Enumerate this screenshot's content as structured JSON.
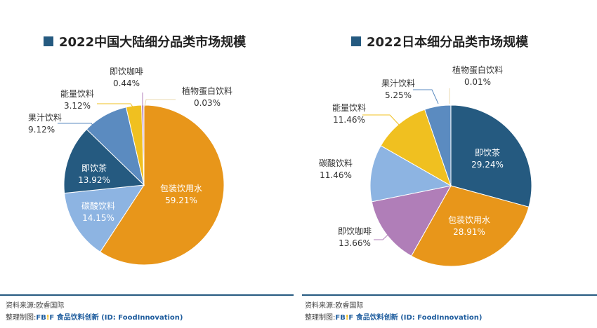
{
  "chart_data": [
    {
      "type": "pie",
      "title": "2022中国大陆细分品类市场规模",
      "slices": [
        {
          "label": "包装饮用水",
          "value": 59.21,
          "color": "#E8961A"
        },
        {
          "label": "碳酸饮料",
          "value": 14.15,
          "color": "#8DB4E2"
        },
        {
          "label": "即饮茶",
          "value": 13.92,
          "color": "#255A80"
        },
        {
          "label": "果汁饮料",
          "value": 9.12,
          "color": "#5B8BC0"
        },
        {
          "label": "能量饮料",
          "value": 3.12,
          "color": "#F0C020"
        },
        {
          "label": "即饮咖啡",
          "value": 0.44,
          "color": "#B07EB8"
        },
        {
          "label": "植物蛋白饮料",
          "value": 0.03,
          "color": "#E8D8B0"
        }
      ]
    },
    {
      "type": "pie",
      "title": "2022日本细分品类市场规模",
      "slices": [
        {
          "label": "即饮茶",
          "value": 29.24,
          "color": "#255A80"
        },
        {
          "label": "包装饮用水",
          "value": 28.91,
          "color": "#E8961A"
        },
        {
          "label": "即饮咖啡",
          "value": 13.66,
          "color": "#B07EB8"
        },
        {
          "label": "碳酸饮料",
          "value": 11.46,
          "color": "#8DB4E2"
        },
        {
          "label": "能量饮料",
          "value": 11.46,
          "color": "#F0C020"
        },
        {
          "label": "果汁饮料",
          "value": 5.25,
          "color": "#5B8BC0"
        },
        {
          "label": "植物蛋白饮料",
          "value": 0.01,
          "color": "#E8D8B0"
        }
      ]
    }
  ],
  "footer": {
    "source": "资料来源:欧睿国际",
    "made_by": "整理制图:",
    "brand_a": "FB",
    "brand_bang": "!",
    "brand_b": "F",
    "brand_text": "食品饮料创新",
    "brand_id": "(ID: FoodInnovation)"
  }
}
